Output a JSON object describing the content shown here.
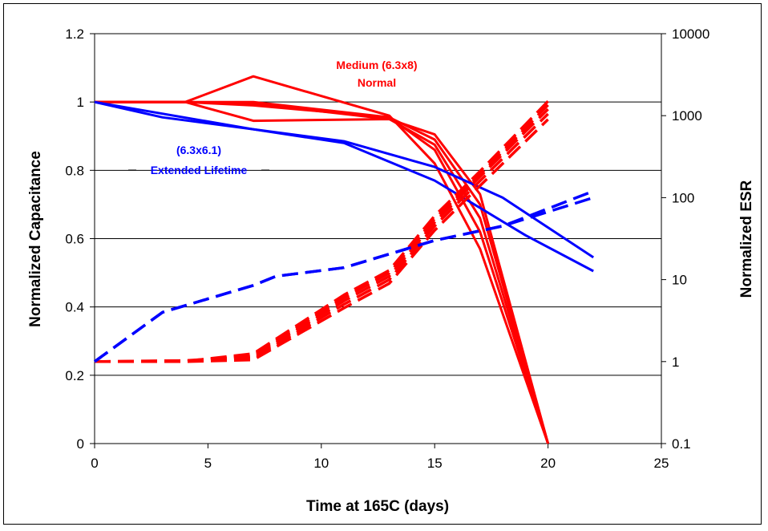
{
  "chart_data": {
    "type": "line",
    "xlabel": "Time at 165C (days)",
    "ylabel": "Normalized Capacitance",
    "y2label": "Normalized ESR",
    "xlim": [
      0,
      25
    ],
    "ylim": [
      0,
      1.2
    ],
    "y2lim": [
      0.1,
      10000
    ],
    "y2scale": "log",
    "grid": "horizontal",
    "x_ticks": [
      "0",
      "5",
      "10",
      "15",
      "20",
      "25"
    ],
    "y_ticks": [
      "0",
      "0.2",
      "0.4",
      "0.6",
      "0.8",
      "1",
      "1.2"
    ],
    "y2_ticks": [
      "0.1",
      "1",
      "10",
      "100",
      "1000",
      "10000"
    ],
    "colors": {
      "red": "#ff0000",
      "blue": "#0000ff",
      "grid": "#000000"
    },
    "annotations": [
      {
        "lines": [
          "Medium (6.3x8)",
          "Normal"
        ],
        "color": "#ff0000"
      },
      {
        "lines": [
          "(6.3x6.1)",
          "Extended Lifetime"
        ],
        "color": "#0000ff"
      }
    ],
    "series": [
      {
        "group": "red",
        "axis": "left",
        "style": "solid",
        "points": [
          [
            0,
            1
          ],
          [
            4,
            1
          ],
          [
            7,
            1.075
          ],
          [
            13,
            0.96
          ],
          [
            15,
            0.82
          ],
          [
            17,
            0.57
          ],
          [
            20,
            0
          ]
        ]
      },
      {
        "group": "red",
        "axis": "left",
        "style": "solid",
        "points": [
          [
            0,
            1
          ],
          [
            4,
            1
          ],
          [
            7,
            0.99
          ],
          [
            13,
            0.955
          ],
          [
            15,
            0.86
          ],
          [
            17,
            0.62
          ],
          [
            20,
            0
          ]
        ]
      },
      {
        "group": "red",
        "axis": "left",
        "style": "solid",
        "points": [
          [
            0,
            1
          ],
          [
            4,
            1
          ],
          [
            7,
            0.995
          ],
          [
            13,
            0.95
          ],
          [
            15,
            0.875
          ],
          [
            17,
            0.66
          ],
          [
            20,
            0
          ]
        ]
      },
      {
        "group": "red",
        "axis": "left",
        "style": "solid",
        "points": [
          [
            0,
            1
          ],
          [
            4,
            1
          ],
          [
            7,
            1.0
          ],
          [
            13,
            0.955
          ],
          [
            15,
            0.89
          ],
          [
            17,
            0.7
          ],
          [
            20,
            0
          ]
        ]
      },
      {
        "group": "red",
        "axis": "left",
        "style": "solid",
        "points": [
          [
            0,
            1
          ],
          [
            4,
            1
          ],
          [
            7,
            0.945
          ],
          [
            13,
            0.95
          ],
          [
            15,
            0.905
          ],
          [
            17,
            0.73
          ],
          [
            20,
            0
          ]
        ]
      },
      {
        "group": "blue",
        "axis": "left",
        "style": "solid",
        "points": [
          [
            0,
            1
          ],
          [
            3,
            0.955
          ],
          [
            11,
            0.885
          ],
          [
            15,
            0.81
          ],
          [
            18,
            0.72
          ],
          [
            22,
            0.545
          ]
        ]
      },
      {
        "group": "blue",
        "axis": "left",
        "style": "solid",
        "points": [
          [
            0,
            1
          ],
          [
            7,
            0.92
          ],
          [
            11,
            0.88
          ],
          [
            15,
            0.77
          ],
          [
            19,
            0.61
          ],
          [
            22,
            0.505
          ]
        ]
      },
      {
        "group": "red",
        "axis": "right",
        "style": "dashed",
        "points": [
          [
            0,
            1
          ],
          [
            4,
            1.0
          ],
          [
            7,
            1.05
          ],
          [
            11,
            4.5
          ],
          [
            13,
            9
          ],
          [
            15,
            40
          ],
          [
            17,
            140
          ],
          [
            20,
            900
          ]
        ]
      },
      {
        "group": "red",
        "axis": "right",
        "style": "dashed",
        "points": [
          [
            0,
            1
          ],
          [
            4,
            1.02
          ],
          [
            7,
            1.1
          ],
          [
            11,
            5.0
          ],
          [
            13,
            10
          ],
          [
            15,
            45
          ],
          [
            17,
            160
          ],
          [
            20,
            1050
          ]
        ]
      },
      {
        "group": "red",
        "axis": "right",
        "style": "dashed",
        "points": [
          [
            0,
            1
          ],
          [
            4,
            1.03
          ],
          [
            7,
            1.15
          ],
          [
            11,
            5.5
          ],
          [
            13,
            11
          ],
          [
            15,
            50
          ],
          [
            17,
            180
          ],
          [
            20,
            1200
          ]
        ]
      },
      {
        "group": "red",
        "axis": "right",
        "style": "dashed",
        "points": [
          [
            0,
            1
          ],
          [
            4,
            1.0
          ],
          [
            7,
            1.2
          ],
          [
            11,
            6.0
          ],
          [
            13,
            12
          ],
          [
            15,
            55
          ],
          [
            17,
            190
          ],
          [
            20,
            1350
          ]
        ]
      },
      {
        "group": "red",
        "axis": "right",
        "style": "dashed",
        "points": [
          [
            0,
            1
          ],
          [
            4,
            1.01
          ],
          [
            7,
            1.25
          ],
          [
            11,
            6.5
          ],
          [
            13,
            13
          ],
          [
            15,
            60
          ],
          [
            17,
            210
          ],
          [
            20,
            1500
          ]
        ]
      },
      {
        "group": "blue",
        "axis": "right",
        "style": "dashed",
        "points": [
          [
            0,
            1
          ],
          [
            3,
            4.0
          ],
          [
            7,
            8.5
          ],
          [
            8,
            11
          ],
          [
            11,
            14
          ],
          [
            15,
            30
          ],
          [
            18,
            45
          ],
          [
            22,
            120
          ]
        ]
      },
      {
        "group": "blue",
        "axis": "right",
        "style": "dashed",
        "points": [
          [
            0,
            1
          ],
          [
            3,
            4.0
          ],
          [
            7,
            8.5
          ],
          [
            8,
            11
          ],
          [
            11,
            14
          ],
          [
            15,
            30
          ],
          [
            18,
            45
          ],
          [
            22,
            100
          ]
        ]
      }
    ]
  }
}
